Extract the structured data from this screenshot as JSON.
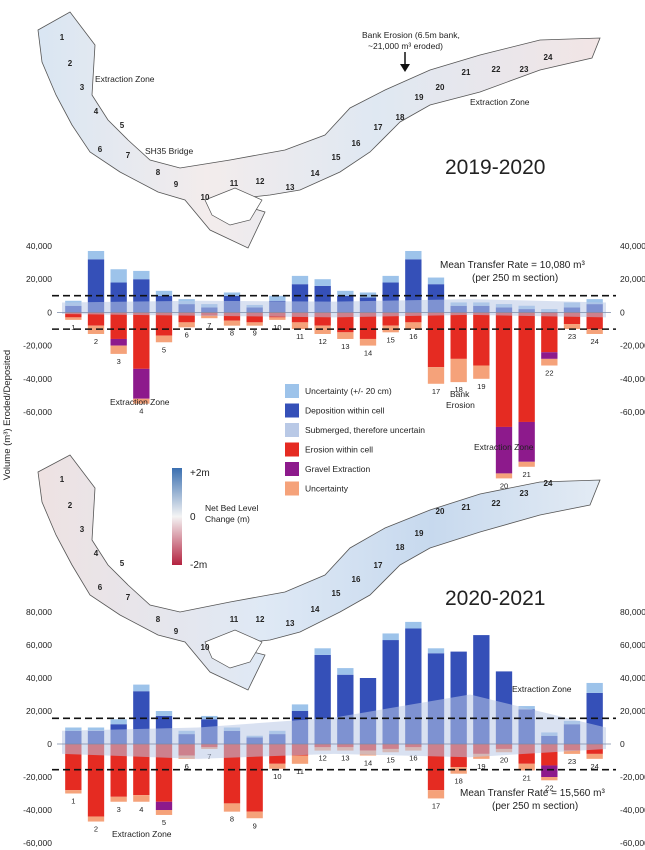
{
  "maps": [
    {
      "period": "2019-2020",
      "annotations": [
        {
          "label": "Extraction Zone"
        },
        {
          "label": "SH35 Bridge"
        },
        {
          "label": "Extraction Zone"
        }
      ],
      "callout": {
        "line1": "Bank Erosion (6.5m bank,",
        "line2": "~21,000 m³ eroded)"
      },
      "sections": [
        "1",
        "2",
        "3",
        "4",
        "5",
        "6",
        "7",
        "8",
        "9",
        "10",
        "11",
        "12",
        "13",
        "14",
        "15",
        "16",
        "17",
        "18",
        "19",
        "20",
        "21",
        "22",
        "23",
        "24"
      ]
    },
    {
      "period": "2020-2021",
      "sections": [
        "1",
        "2",
        "3",
        "4",
        "5",
        "6",
        "7",
        "8",
        "9",
        "10",
        "11",
        "12",
        "13",
        "14",
        "15",
        "16",
        "17",
        "18",
        "19",
        "20",
        "21",
        "22",
        "23",
        "24"
      ]
    }
  ],
  "colorbar": {
    "title_line1": "Net Bed Level",
    "title_line2": "Change (m)",
    "max_label": "+2m",
    "mid_label": "0",
    "min_label": "-2m",
    "colors": {
      "high": "#3a6fb0",
      "mid": "#f4f4f4",
      "low": "#b3223f"
    }
  },
  "legend": [
    {
      "label": "Uncertainty (+/- 20 cm)",
      "color": "#9dc3ea"
    },
    {
      "label": "Deposition within cell",
      "color": "#3550b8"
    },
    {
      "label": "Submerged, therefore uncertain",
      "color": "#b9c9e6"
    },
    {
      "label": "Erosion within cell",
      "color": "#e52b22"
    },
    {
      "label": "Gravel Extraction",
      "color": "#8d1a8c"
    },
    {
      "label": "Uncertainty",
      "color": "#f5a27a"
    }
  ],
  "ylabel": "Volume (m³) Eroded/Deposited",
  "chart_data": [
    {
      "type": "bar",
      "period": "2019-2020",
      "ylim": [
        -60000,
        40000
      ],
      "yticks": [
        -60000,
        -40000,
        -20000,
        0,
        20000,
        40000
      ],
      "ytick_labels": [
        "-60,000",
        "-40,000",
        "-20,000",
        "0",
        "20,000",
        "40,000"
      ],
      "categories": [
        "1",
        "2",
        "3",
        "4",
        "5",
        "6",
        "7",
        "8",
        "9",
        "10",
        "11",
        "12",
        "13",
        "14",
        "15",
        "16",
        "17",
        "18",
        "19",
        "20",
        "21",
        "22",
        "23",
        "24"
      ],
      "series": [
        {
          "name": "Deposition within cell",
          "values": [
            4000,
            32000,
            18000,
            20000,
            10000,
            5000,
            3000,
            10000,
            3000,
            7000,
            17000,
            16000,
            10000,
            9000,
            18000,
            32000,
            17000,
            4000,
            4000,
            3000,
            2000,
            0,
            3000,
            5000
          ]
        },
        {
          "name": "Uncertainty (+/- 20 cm)",
          "values": [
            3000,
            5000,
            8000,
            5000,
            3000,
            3000,
            2000,
            2000,
            1500,
            3000,
            5000,
            4000,
            3000,
            3000,
            4000,
            5000,
            4000,
            2000,
            2000,
            2000,
            2000,
            2000,
            3000,
            3000
          ]
        },
        {
          "name": "Erosion within cell",
          "values": [
            -3000,
            -8000,
            -16000,
            -34000,
            -14000,
            -6000,
            -2000,
            -5000,
            -6000,
            -3000,
            -6000,
            -8000,
            -12000,
            -16000,
            -8000,
            -6000,
            -33000,
            -28000,
            -32000,
            -69000,
            -66000,
            -24000,
            -7000,
            -10000
          ]
        },
        {
          "name": "Gravel Extraction",
          "values": [
            0,
            0,
            -4000,
            -18000,
            0,
            0,
            0,
            0,
            0,
            0,
            0,
            0,
            0,
            0,
            0,
            0,
            0,
            0,
            0,
            -28000,
            -24000,
            -4000,
            0,
            0
          ]
        },
        {
          "name": "Uncertainty",
          "values": [
            -1500,
            -5000,
            -5000,
            -3000,
            -4000,
            -3000,
            -1500,
            -3000,
            -2000,
            -1500,
            -4000,
            -5000,
            -4000,
            -4000,
            -4000,
            -4000,
            -10000,
            -14000,
            -8000,
            -3000,
            -3000,
            -4000,
            -3000,
            -3000
          ]
        }
      ],
      "submerged_band": [
        [
          -1000,
          6000
        ],
        [
          -2000,
          7000
        ],
        [
          -3000,
          6500
        ],
        [
          -1500,
          8000
        ],
        [
          -3000,
          6000
        ]
      ],
      "mean_line": 10080,
      "mean_text_line1": "Mean Transfer Rate = 10,080 m³",
      "mean_text_line2": "(per 250 m section)",
      "annotations": [
        {
          "label": "Extraction Zone"
        },
        {
          "label": "Bank",
          "label2": "Erosion"
        },
        {
          "label": "Extraction Zone"
        }
      ]
    },
    {
      "type": "bar",
      "period": "2020-2021",
      "ylim": [
        -60000,
        80000
      ],
      "yticks": [
        -60000,
        -40000,
        -20000,
        0,
        20000,
        40000,
        60000,
        80000
      ],
      "ytick_labels": [
        "-60,000",
        "-40,000",
        "-20,000",
        "0",
        "20,000",
        "40,000",
        "60,000",
        "80,000"
      ],
      "categories": [
        "1",
        "2",
        "3",
        "4",
        "5",
        "6",
        "7",
        "8",
        "9",
        "10",
        "11",
        "12",
        "13",
        "14",
        "15",
        "16",
        "17",
        "18",
        "19",
        "20",
        "21",
        "22",
        "23",
        "24"
      ],
      "series": [
        {
          "name": "Deposition within cell",
          "values": [
            8000,
            8000,
            12000,
            32000,
            17000,
            6000,
            15000,
            8000,
            4000,
            6000,
            20000,
            54000,
            42000,
            40000,
            63000,
            70000,
            55000,
            56000,
            66000,
            44000,
            21000,
            5000,
            12000,
            31000
          ]
        },
        {
          "name": "Uncertainty (+/- 20 cm)",
          "values": [
            2000,
            2000,
            3000,
            4000,
            3000,
            2000,
            2000,
            2000,
            1000,
            2000,
            4000,
            4000,
            4000,
            0,
            4000,
            4000,
            3000,
            0,
            0,
            0,
            2000,
            2000,
            2000,
            6000
          ]
        },
        {
          "name": "Erosion within cell",
          "values": [
            -28000,
            -44000,
            -32000,
            -31000,
            -35000,
            -7000,
            -2000,
            -36000,
            -41000,
            -12000,
            -7000,
            -2000,
            -2000,
            -4000,
            -3000,
            -2000,
            -28000,
            -14000,
            -6000,
            -3000,
            -12000,
            -13000,
            -4000,
            -6000
          ]
        },
        {
          "name": "Gravel Extraction",
          "values": [
            0,
            0,
            0,
            0,
            -5000,
            0,
            0,
            0,
            0,
            0,
            0,
            0,
            0,
            0,
            0,
            0,
            0,
            0,
            0,
            0,
            0,
            -7000,
            0,
            0
          ]
        },
        {
          "name": "Uncertainty",
          "values": [
            -2000,
            -3000,
            -3000,
            -4000,
            -3000,
            -2000,
            -1000,
            -5000,
            -4000,
            -3000,
            -5000,
            -2000,
            -2000,
            -3000,
            -2000,
            -2000,
            -5000,
            -4000,
            -3000,
            -2000,
            -4000,
            -2000,
            -2000,
            -3000
          ]
        }
      ],
      "submerged_band": [
        [
          -6000,
          8000
        ],
        [
          -9000,
          10000
        ],
        [
          -6000,
          16000
        ],
        [
          -8000,
          30000
        ],
        [
          -3000,
          10000
        ]
      ],
      "mean_line": 15560,
      "mean_text_line1": "Mean Transfer Rate = 15,560 m³",
      "mean_text_line2": "(per 250 m section)",
      "annotations": [
        {
          "label": "Extraction Zone"
        },
        {
          "label": "Extraction Zone"
        }
      ]
    }
  ]
}
